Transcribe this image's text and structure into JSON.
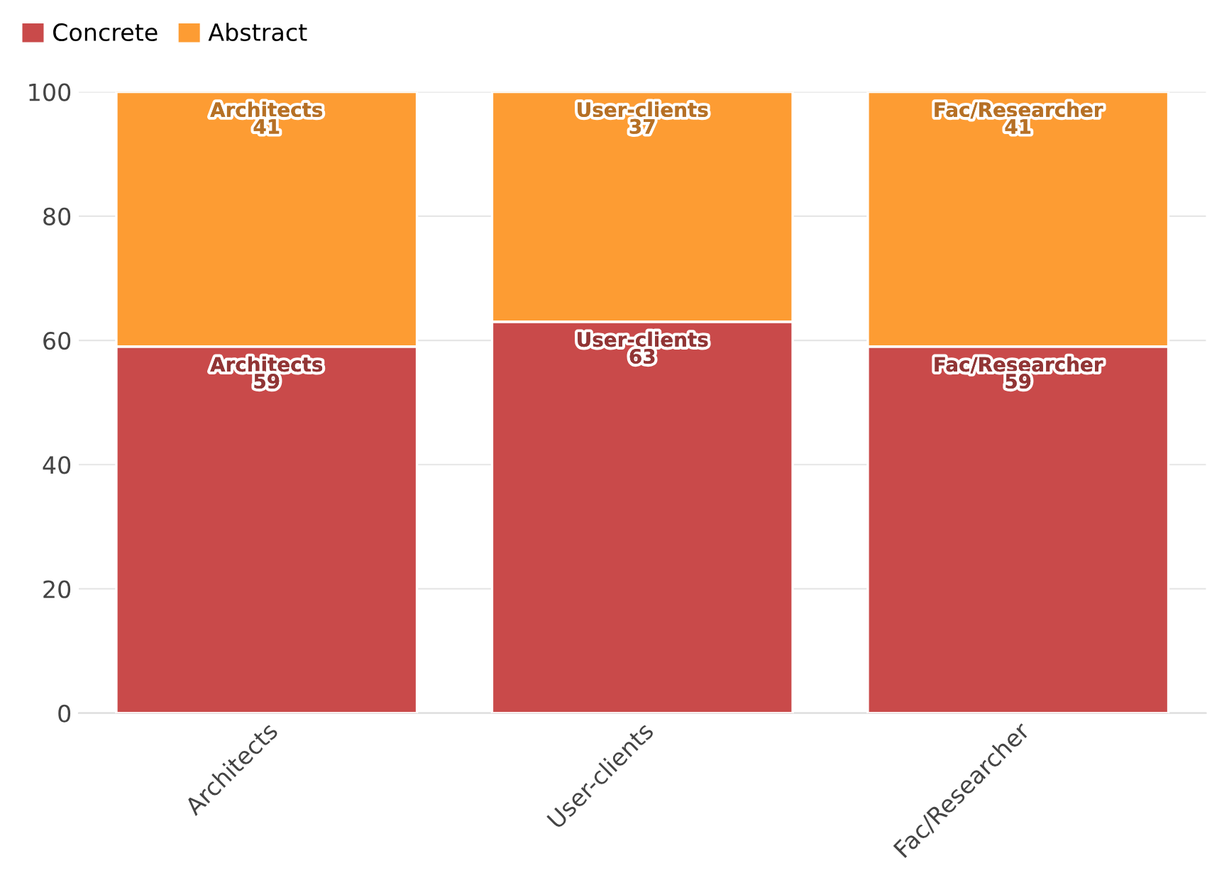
{
  "chart_data": {
    "type": "bar",
    "stacked": true,
    "categories": [
      "Architects",
      "User-clients",
      "Fac/Researcher"
    ],
    "series": [
      {
        "name": "Concrete",
        "color": "#c94a4a",
        "values": [
          59,
          63,
          59
        ],
        "value_labels": [
          "Architects\n59",
          "User-clients\n63",
          "Fac/Researcher\n59"
        ]
      },
      {
        "name": "Abstract",
        "color": "#fd9c33",
        "values": [
          41,
          37,
          41
        ],
        "value_labels": [
          "Architects\n41",
          "User-clients\n37",
          "Fac/Researcher\n41"
        ]
      }
    ],
    "ylim": [
      0,
      100
    ],
    "yticks": [
      0,
      20,
      40,
      60,
      80,
      100
    ],
    "grid": "y",
    "legend": "top left"
  }
}
